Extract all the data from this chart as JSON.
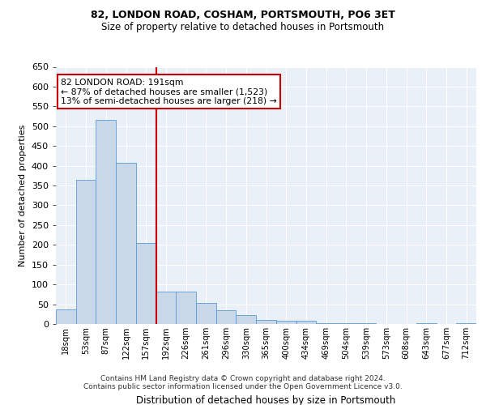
{
  "title1": "82, LONDON ROAD, COSHAM, PORTSMOUTH, PO6 3ET",
  "title2": "Size of property relative to detached houses in Portsmouth",
  "xlabel": "Distribution of detached houses by size in Portsmouth",
  "ylabel": "Number of detached properties",
  "categories": [
    "18sqm",
    "53sqm",
    "87sqm",
    "122sqm",
    "157sqm",
    "192sqm",
    "226sqm",
    "261sqm",
    "296sqm",
    "330sqm",
    "365sqm",
    "400sqm",
    "434sqm",
    "469sqm",
    "504sqm",
    "539sqm",
    "573sqm",
    "608sqm",
    "643sqm",
    "677sqm",
    "712sqm"
  ],
  "values": [
    37,
    365,
    515,
    408,
    205,
    82,
    82,
    53,
    35,
    22,
    11,
    8,
    8,
    3,
    3,
    2,
    0,
    0,
    3,
    0,
    3
  ],
  "bar_color": "#c8d8e8",
  "bar_edge_color": "#5b9bd5",
  "highlight_line_color": "#cc0000",
  "highlight_bar_index": 5,
  "annotation_line1": "82 LONDON ROAD: 191sqm",
  "annotation_line2": "← 87% of detached houses are smaller (1,523)",
  "annotation_line3": "13% of semi-detached houses are larger (218) →",
  "annotation_box_color": "#cc0000",
  "ylim": [
    0,
    650
  ],
  "yticks": [
    0,
    50,
    100,
    150,
    200,
    250,
    300,
    350,
    400,
    450,
    500,
    550,
    600,
    650
  ],
  "footer_text": "Contains HM Land Registry data © Crown copyright and database right 2024.\nContains public sector information licensed under the Open Government Licence v3.0.",
  "plot_bg_color": "#eaf0f8"
}
